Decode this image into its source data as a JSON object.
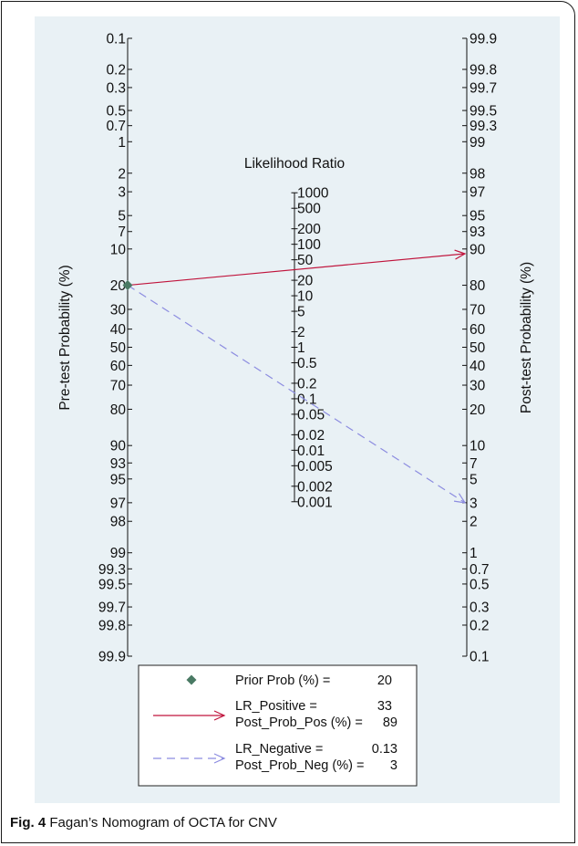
{
  "chart_data": {
    "type": "nomogram",
    "caption_label": "Fig. 4",
    "caption_text": "Fagan’s Nomogram of OCTA for CNV",
    "lr_title": "Likelihood Ratio",
    "left_axis_label": "Pre-test Probability (%)",
    "right_axis_label": "Post-test Probability (%)",
    "pre_ticks": [
      "0.1",
      "0.2",
      "0.3",
      "0.5",
      "0.7",
      "1",
      "2",
      "3",
      "5",
      "7",
      "10",
      "20",
      "30",
      "40",
      "50",
      "60",
      "70",
      "80",
      "90",
      "93",
      "95",
      "97",
      "98",
      "99",
      "99.3",
      "99.5",
      "99.7",
      "99.8",
      "99.9"
    ],
    "post_ticks": [
      "99.9",
      "99.8",
      "99.7",
      "99.5",
      "99.3",
      "99",
      "98",
      "97",
      "95",
      "93",
      "90",
      "80",
      "70",
      "60",
      "50",
      "40",
      "30",
      "20",
      "10",
      "7",
      "5",
      "3",
      "2",
      "1",
      "0.7",
      "0.5",
      "0.3",
      "0.2",
      "0.1"
    ],
    "lr_ticks": [
      "1000",
      "500",
      "200",
      "100",
      "50",
      "20",
      "10",
      "5",
      "2",
      "1",
      "0.5",
      "0.2",
      "0.1",
      "0.05",
      "0.02",
      "0.01",
      "0.005",
      "0.002",
      "0.001"
    ],
    "prior_prob": 20,
    "lr_positive": 33,
    "post_prob_pos": 89,
    "lr_negative": 0.13,
    "post_prob_neg": 3,
    "colors": {
      "positive": "#c0143c",
      "negative": "#8c8ce0",
      "prior": "#4a7a64"
    },
    "legend": {
      "prior_label": "Prior Prob (%) =",
      "prior_value": "20",
      "lr_pos_label": "LR_Positive =",
      "lr_pos_value": "33",
      "post_pos_label": "Post_Prob_Pos (%) =",
      "post_pos_value": "89",
      "lr_neg_label": "LR_Negative =",
      "lr_neg_value": "0.13",
      "post_neg_label": "Post_Prob_Neg (%) =",
      "post_neg_value": "3"
    }
  }
}
